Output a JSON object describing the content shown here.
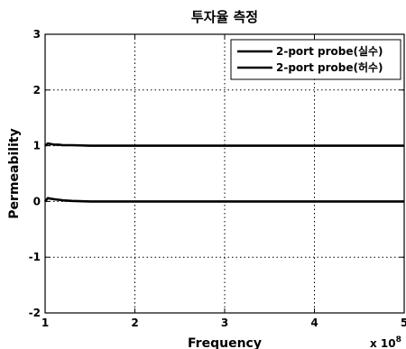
{
  "chart_data": {
    "type": "line",
    "title": "투자율 측정",
    "xlabel": "Frequency",
    "ylabel": "Permeability",
    "x_exponent_label": "x 10",
    "x_exponent_power": "8",
    "xlim": [
      1,
      5
    ],
    "ylim": [
      -2,
      3
    ],
    "xticks": [
      "1",
      "2",
      "3",
      "4",
      "5"
    ],
    "yticks": [
      "-2",
      "-1",
      "0",
      "1",
      "2",
      "3"
    ],
    "grid": true,
    "legend_position": "top-right",
    "series": [
      {
        "name": "2-port probe(실수)",
        "color": "#000000",
        "x": [
          1.0,
          1.03,
          1.06,
          1.1,
          1.15,
          1.2,
          1.3,
          1.5,
          2.0,
          2.5,
          3.0,
          3.5,
          4.0,
          4.5,
          5.0
        ],
        "y": [
          1.0,
          1.04,
          1.03,
          1.02,
          1.02,
          1.01,
          1.01,
          1.0,
          1.0,
          1.0,
          1.0,
          1.0,
          1.0,
          1.0,
          1.0
        ]
      },
      {
        "name": "2-port probe(허수)",
        "color": "#000000",
        "x": [
          1.0,
          1.03,
          1.06,
          1.1,
          1.15,
          1.2,
          1.3,
          1.5,
          2.0,
          2.5,
          3.0,
          3.5,
          4.0,
          4.5,
          5.0
        ],
        "y": [
          0.0,
          0.06,
          0.05,
          0.04,
          0.03,
          0.02,
          0.01,
          0.0,
          0.0,
          0.0,
          0.0,
          0.0,
          0.0,
          0.0,
          0.0
        ]
      }
    ]
  }
}
